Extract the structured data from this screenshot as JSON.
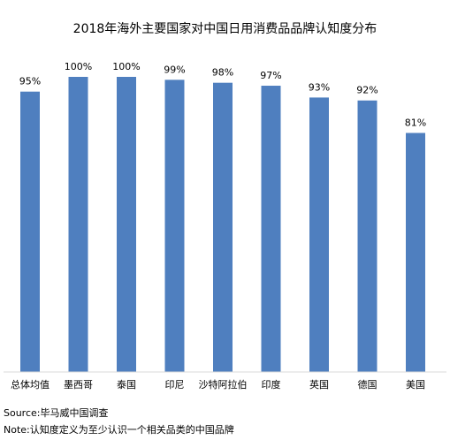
{
  "chart_data": {
    "type": "bar",
    "title": "2018年海外主要国家对中国日用消费品品牌认知度分布",
    "categories": [
      "总体均值",
      "墨西哥",
      "泰国",
      "印尼",
      "沙特阿拉伯",
      "印度",
      "英国",
      "德国",
      "美国"
    ],
    "values": [
      95,
      100,
      100,
      99,
      98,
      97,
      93,
      92,
      81
    ],
    "data_labels": [
      "95%",
      "100%",
      "100%",
      "99%",
      "98%",
      "97%",
      "93%",
      "92%",
      "81%"
    ],
    "ylim": [
      0,
      100
    ],
    "xlabel": "",
    "ylabel": "",
    "grid": false,
    "legend": "none",
    "bar_color": "#4f7fbf"
  },
  "footer": {
    "source": "Source:毕马威中国调查",
    "note": "Note:认知度定义为至少认识一个相关品类的中国品牌"
  }
}
